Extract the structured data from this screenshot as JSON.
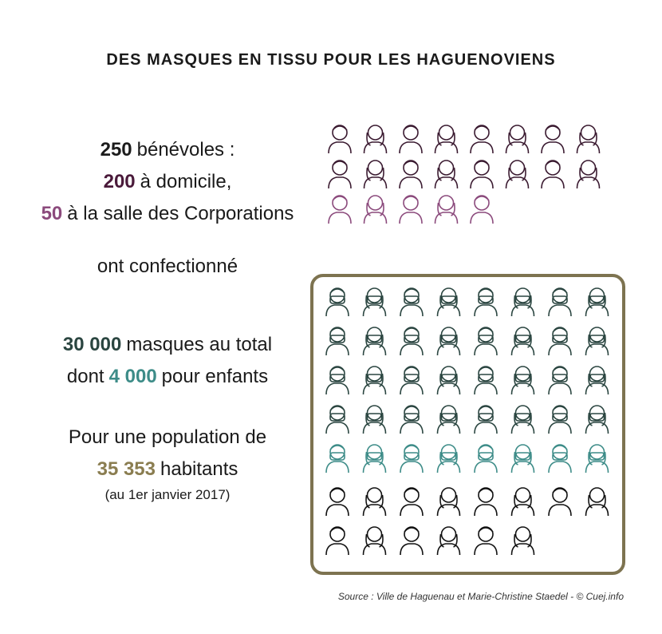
{
  "header": {
    "title": "DES MASQUES EN TISSU POUR LES HAGUENOVIENS"
  },
  "volunteers": {
    "lines": [
      {
        "number": "250",
        "text": "bénévoles :"
      },
      {
        "number": "200",
        "text": "à domicile,"
      },
      {
        "number": "50",
        "text": "à la salle des Corporations"
      }
    ]
  },
  "verb": "ont confectionné",
  "masks": {
    "total": {
      "number": "30 000",
      "text": "masques au total"
    },
    "children": {
      "prefix": "dont",
      "number": "4 000",
      "text": "pour enfants"
    }
  },
  "population": {
    "intro": "Pour une population de",
    "number": "35 353",
    "text": "habitants",
    "note": "(au 1er janvier 2017)"
  },
  "source": "Source : Ville de Haguenau et Marie-Christine Staedel - © Cuej.info"
}
